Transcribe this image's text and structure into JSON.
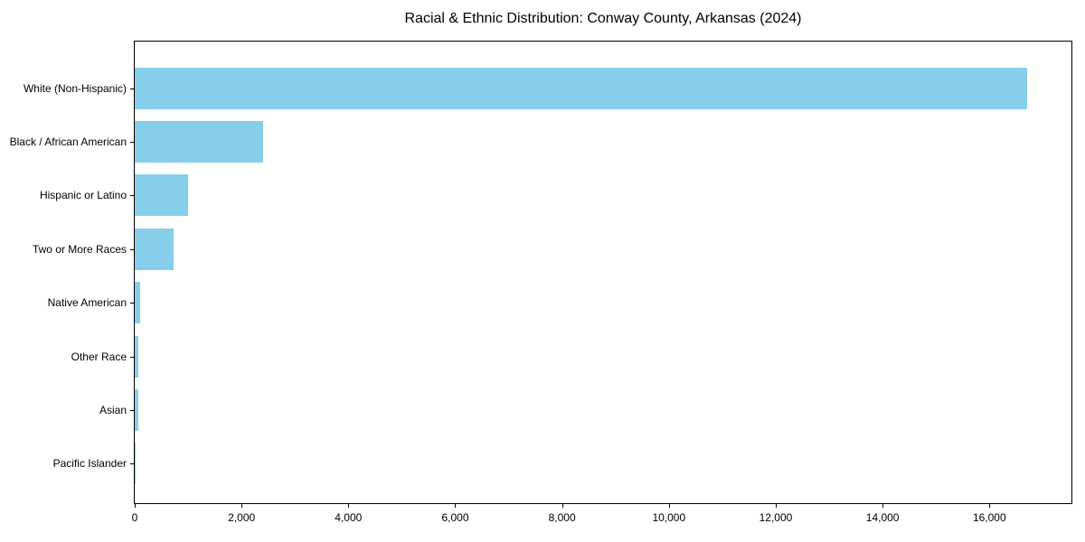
{
  "chart_data": {
    "type": "bar",
    "orientation": "horizontal",
    "title": "Racial & Ethnic Distribution: Conway County, Arkansas (2024)",
    "categories": [
      "White (Non-Hispanic)",
      "Black / African American",
      "Hispanic or Latino",
      "Two or More Races",
      "Native American",
      "Other Race",
      "Asian",
      "Pacific Islander"
    ],
    "values": [
      16700,
      2400,
      1000,
      720,
      100,
      70,
      60,
      10
    ],
    "xlabel": "",
    "ylabel": "",
    "xlim": [
      0,
      17535
    ],
    "x_ticks": [
      0,
      2000,
      4000,
      6000,
      8000,
      10000,
      12000,
      14000,
      16000
    ],
    "x_tick_labels": [
      "0",
      "2,000",
      "4,000",
      "6,000",
      "8,000",
      "10,000",
      "12,000",
      "14,000",
      "16,000"
    ],
    "grid": false,
    "legend": null,
    "bar_color": "#87CEEB",
    "background_color": "#FFFFFF",
    "text_color": "#000000"
  }
}
